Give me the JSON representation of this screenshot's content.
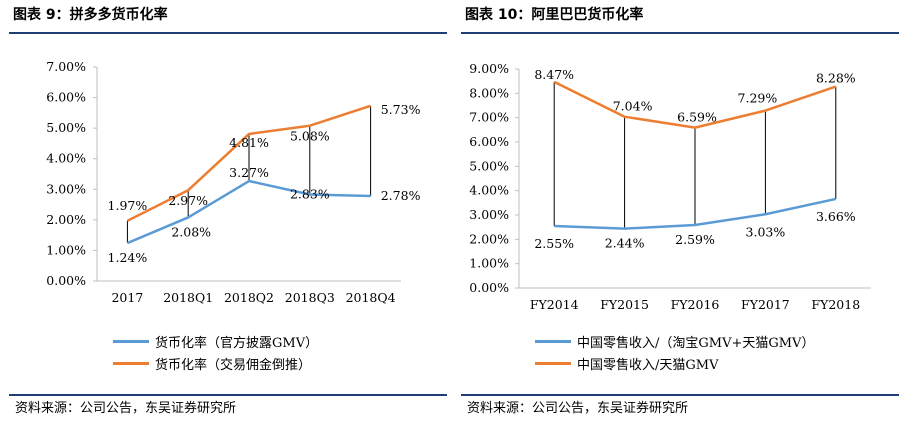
{
  "chart_data": [
    {
      "type": "line",
      "title": "图表 9：拼多多货币化率",
      "categories": [
        "2017",
        "2018Q1",
        "2018Q2",
        "2018Q3",
        "2018Q4"
      ],
      "y_ticks": [
        "0.00%",
        "1.00%",
        "2.00%",
        "3.00%",
        "4.00%",
        "5.00%",
        "6.00%",
        "7.00%"
      ],
      "ylim": [
        0,
        7
      ],
      "series": [
        {
          "name": "货币化率（官方披露GMV）",
          "color": "#5b9bd5",
          "values": [
            1.24,
            2.08,
            3.27,
            2.83,
            2.78
          ],
          "labels": [
            "1.24%",
            "2.08%",
            "3.27%",
            "2.83%",
            "2.78%"
          ]
        },
        {
          "name": "货币化率（交易佣金倒推）",
          "color": "#ed7d31",
          "values": [
            1.97,
            2.97,
            4.81,
            5.08,
            5.73
          ],
          "labels": [
            "1.97%",
            "2.97%",
            "4.81%",
            "5.08%",
            "5.73%"
          ]
        }
      ],
      "source": "资料来源：公司公告，东吴证券研究所"
    },
    {
      "type": "line",
      "title": "图表 10：阿里巴巴货币化率",
      "categories": [
        "FY2014",
        "FY2015",
        "FY2016",
        "FY2017",
        "FY2018"
      ],
      "y_ticks": [
        "0.00%",
        "1.00%",
        "2.00%",
        "3.00%",
        "4.00%",
        "5.00%",
        "6.00%",
        "7.00%",
        "8.00%",
        "9.00%"
      ],
      "ylim": [
        0,
        9
      ],
      "series": [
        {
          "name": "中国零售收入/（淘宝GMV+天猫GMV）",
          "color": "#5b9bd5",
          "values": [
            2.55,
            2.44,
            2.59,
            3.03,
            3.66
          ],
          "labels": [
            "2.55%",
            "2.44%",
            "2.59%",
            "3.03%",
            "3.66%"
          ]
        },
        {
          "name": "中国零售收入/天猫GMV",
          "color": "#ed7d31",
          "values": [
            8.47,
            7.04,
            6.59,
            7.29,
            8.28
          ],
          "labels": [
            "8.47%",
            "7.04%",
            "6.59%",
            "7.29%",
            "8.28%"
          ]
        }
      ],
      "source": "资料来源：公司公告，东吴证券研究所"
    }
  ]
}
